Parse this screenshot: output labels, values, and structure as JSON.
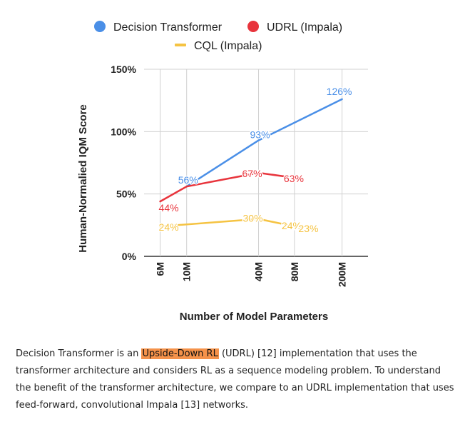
{
  "chart_data": {
    "type": "line",
    "xlabel": "Number of Model Parameters",
    "ylabel": "Human-Normalied IQM Score",
    "ylim": [
      0,
      150
    ],
    "y_ticks": [
      "0%",
      "50%",
      "100%",
      "150%"
    ],
    "x_scale": "log",
    "x_ticks": [
      {
        "label": "6M",
        "value": 6
      },
      {
        "label": "10M",
        "value": 10
      },
      {
        "label": "40M",
        "value": 40
      },
      {
        "label": "80M",
        "value": 80
      },
      {
        "label": "200M",
        "value": 200
      }
    ],
    "grid": true,
    "legend_position": "top",
    "series": [
      {
        "name": "Decision Transformer",
        "color": "#4a8fe7",
        "marker": "circle",
        "x": [
          10,
          40,
          200
        ],
        "y": [
          56,
          93,
          126
        ],
        "labels": [
          "56%",
          "93%",
          "126%"
        ]
      },
      {
        "name": "UDRL (Impala)",
        "color": "#e8343c",
        "marker": "circle",
        "x": [
          6,
          10,
          40,
          80
        ],
        "y": [
          44,
          56,
          67,
          63
        ],
        "labels": [
          "44%",
          "",
          "67%",
          "63%"
        ]
      },
      {
        "name": "CQL (Impala)",
        "color": "#f5c342",
        "marker": "line",
        "x": [
          6,
          40,
          80,
          120
        ],
        "y": [
          24,
          30,
          24,
          23
        ],
        "labels": [
          "24%",
          "30%",
          "24%",
          "23%"
        ]
      }
    ]
  },
  "caption": {
    "part1": "Decision Transformer is an ",
    "highlight": "Upside-Down RL",
    "part2": " (UDRL) [12] implementation that uses the transformer architecture and considers RL as a sequence modeling problem. To understand the benefit of the transformer architecture, we compare to an UDRL implementation that uses feed-forward, convolutional Impala [13] networks."
  }
}
